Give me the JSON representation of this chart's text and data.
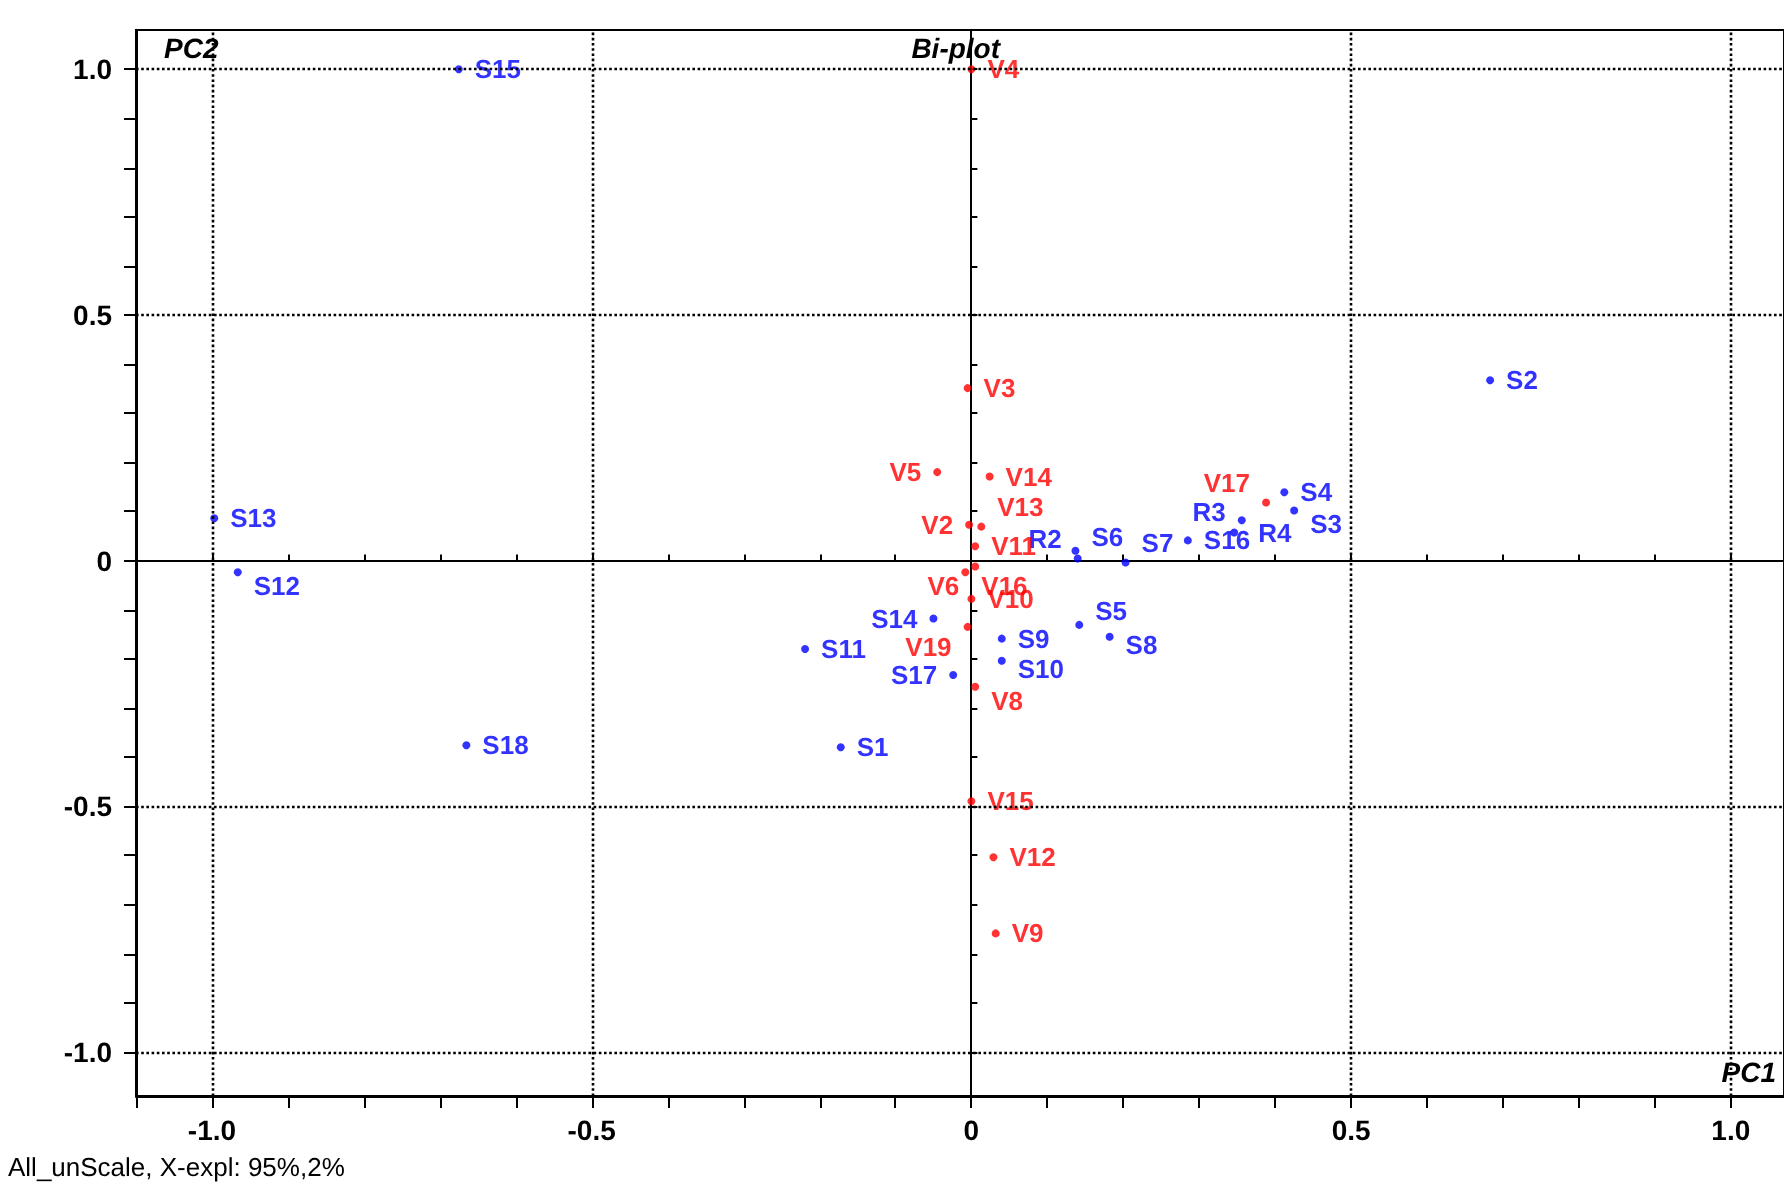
{
  "chart_data": {
    "type": "scatter",
    "title": "Bi-plot",
    "xlabel": "PC1",
    "ylabel": "PC2",
    "annotations": [
      "All_unScale, X-expl: 95%,2%"
    ],
    "marker": "circle",
    "grid": true,
    "xlim": [
      -1.1,
      1.07
    ],
    "ylim": [
      -1.09,
      1.08
    ],
    "xticks": [
      {
        "value": -1.1,
        "label": null
      },
      {
        "value": -1.0,
        "label": "-1.0"
      },
      {
        "value": -0.9,
        "label": null
      },
      {
        "value": -0.8,
        "label": null
      },
      {
        "value": -0.7,
        "label": null
      },
      {
        "value": -0.6,
        "label": null
      },
      {
        "value": -0.5,
        "label": "-0.5"
      },
      {
        "value": -0.4,
        "label": null
      },
      {
        "value": -0.3,
        "label": null
      },
      {
        "value": -0.2,
        "label": null
      },
      {
        "value": -0.1,
        "label": null
      },
      0,
      {
        "value": 0.1,
        "label": null
      },
      {
        "value": 0.2,
        "label": null
      },
      {
        "value": 0.3,
        "label": null
      },
      {
        "value": 0.4,
        "label": null
      },
      0.5,
      {
        "value": 0.6,
        "label": null
      },
      {
        "value": 0.7,
        "label": null
      },
      {
        "value": 0.8,
        "label": null
      },
      {
        "value": 0.9,
        "label": null
      },
      {
        "value": 1.0,
        "label": "1.0"
      }
    ],
    "yticks": [
      {
        "value": -1.0,
        "label": "-1.0"
      },
      {
        "value": -0.9,
        "label": null
      },
      {
        "value": -0.8,
        "label": null
      },
      {
        "value": -0.7,
        "label": null
      },
      {
        "value": -0.6,
        "label": null
      },
      {
        "value": -0.5,
        "label": "-0.5"
      },
      {
        "value": -0.4,
        "label": null
      },
      {
        "value": -0.3,
        "label": null
      },
      {
        "value": -0.2,
        "label": null
      },
      {
        "value": -0.1,
        "label": null
      },
      0,
      {
        "value": 0.1,
        "label": null
      },
      {
        "value": 0.2,
        "label": null
      },
      {
        "value": 0.3,
        "label": null
      },
      {
        "value": 0.4,
        "label": null
      },
      0.5,
      {
        "value": 0.6,
        "label": null
      },
      {
        "value": 0.7,
        "label": null
      },
      {
        "value": 0.8,
        "label": null
      },
      {
        "value": 0.9,
        "label": null
      },
      {
        "value": 1.0,
        "label": "1.0"
      }
    ],
    "series": [
      {
        "color": "#0000ff",
        "x": [
          -0.675,
          0.683,
          -0.997,
          -0.966,
          -0.665,
          -0.172,
          -0.219,
          -0.05,
          -0.024,
          0.04,
          0.04,
          0.142,
          0.182,
          0.137,
          0.14,
          0.203,
          0.285,
          0.346,
          0.356,
          0.412,
          0.425
        ],
        "values": [
          1.0,
          0.367,
          0.086,
          -0.024,
          -0.376,
          -0.38,
          -0.18,
          -0.118,
          -0.233,
          -0.159,
          -0.204,
          -0.131,
          -0.155,
          0.02,
          0.004,
          -0.004,
          0.041,
          0.057,
          0.082,
          0.139,
          0.102
        ],
        "value_labels": [
          "S15",
          "S2",
          "S13",
          "S12",
          "S18",
          "S1",
          "S11",
          "S14",
          "S17",
          "S9",
          "S10",
          "S5",
          "S8",
          "S6",
          "R2",
          "S7",
          "S16",
          "R4",
          "R3",
          "S4",
          "S3"
        ]
      },
      {
        "color": "#ff0000",
        "x": [
          0,
          -0.005,
          -0.045,
          0.024,
          -0.003,
          0.013,
          0.005,
          -0.008,
          0.005,
          0,
          -0.005,
          0.005,
          0,
          0.029,
          0.032,
          0.388
        ],
        "values": [
          1.0,
          0.351,
          0.18,
          0.171,
          0.073,
          0.069,
          0.029,
          -0.024,
          -0.012,
          -0.078,
          -0.135,
          -0.257,
          -0.49,
          -0.604,
          -0.759,
          0.118
        ],
        "value_labels": [
          "V4",
          "V3",
          "V5",
          "V14",
          "V2",
          "V13",
          "V11",
          "V16",
          "V6",
          "V10",
          "V19",
          "V8",
          "V15",
          "V12",
          "V9",
          "V17"
        ]
      }
    ]
  }
}
